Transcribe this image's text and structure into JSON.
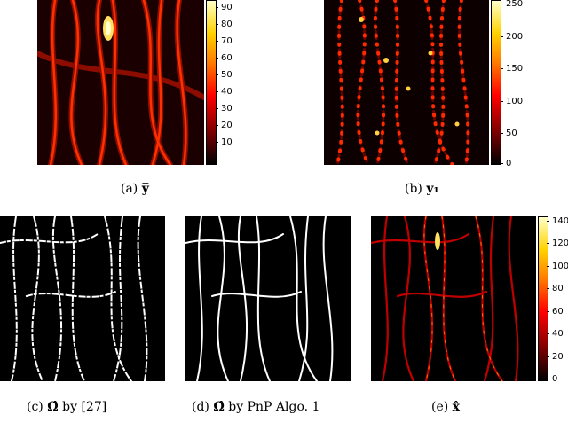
{
  "panels": {
    "a": {
      "caption_prefix": "(a)",
      "caption_symbol": "y̅",
      "colorbar_ticks": [
        "90",
        "80",
        "70",
        "60",
        "50",
        "40",
        "30",
        "20",
        "10"
      ],
      "colorbar_max": 95
    },
    "b": {
      "caption_prefix": "(b)",
      "caption_symbol": "y₁",
      "colorbar_ticks": [
        "250",
        "200",
        "150",
        "100",
        "50",
        "0"
      ],
      "colorbar_max": 255
    },
    "c": {
      "caption_prefix": "(c)",
      "caption_symbol": "Ω̂",
      "caption_suffix": "by [27]"
    },
    "d": {
      "caption_prefix": "(d)",
      "caption_symbol": "Ω̂",
      "caption_suffix": "by PnP Algo. 1"
    },
    "e": {
      "caption_prefix": "(e)",
      "caption_symbol": "x̂",
      "colorbar_ticks": [
        "140",
        "120",
        "100",
        "80",
        "60",
        "40",
        "20",
        "0"
      ],
      "colorbar_max": 145
    }
  },
  "colors": {
    "hot_dark": "#000000",
    "hot_red": "#ff0000",
    "hot_yellow": "#ffd200",
    "mask_fg": "#ffffff",
    "mask_bg": "#000000"
  }
}
